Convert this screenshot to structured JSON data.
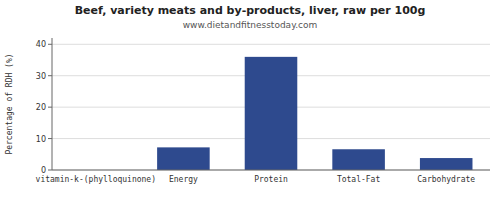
{
  "chart_data": {
    "type": "bar",
    "title": "Beef, variety meats and by-products, liver, raw per 100g",
    "subtitle": "www.dietandfitnesstoday.com",
    "ylabel": "Percentage of RDH (%)",
    "categories": [
      "vitamin-k-(phylloquinone)",
      "Energy",
      "Protein",
      "Total-Fat",
      "Carbohydrate"
    ],
    "values": [
      0,
      7.2,
      36.0,
      6.6,
      3.8
    ],
    "color": "#2e4a8e",
    "ylim": [
      0,
      42
    ],
    "yticks": [
      0,
      10,
      20,
      30,
      40
    ],
    "grid": true
  }
}
